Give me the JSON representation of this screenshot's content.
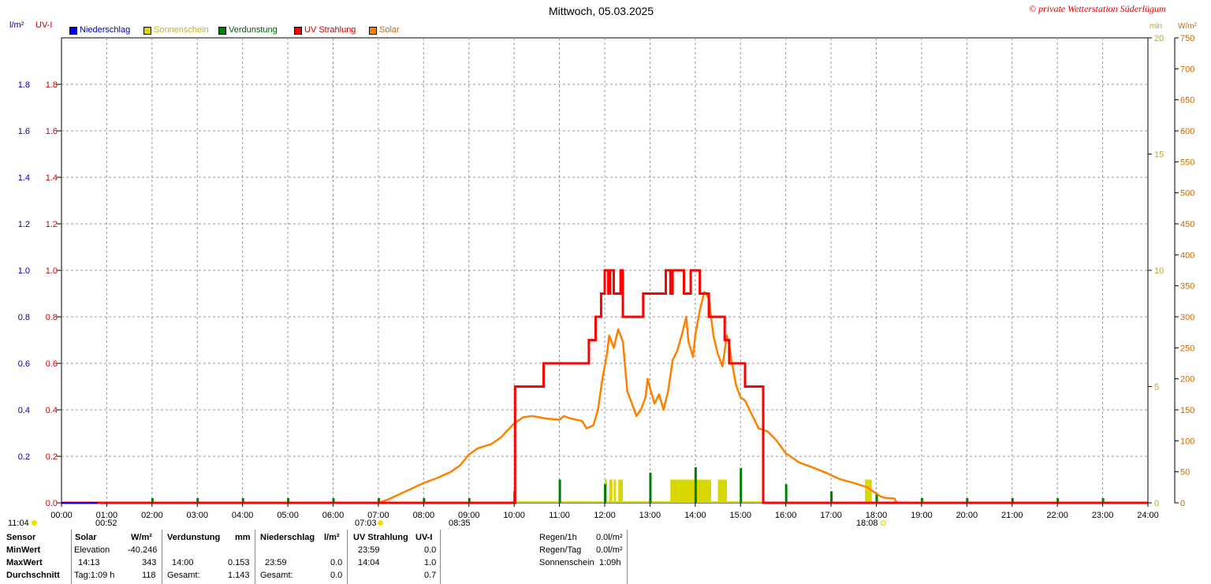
{
  "header": {
    "title": "Mittwoch, 05.03.2025",
    "copyright": "© private Wetterstation Süderlügum",
    "left_unit_1": "l/m²",
    "left_unit_2": "UV-I",
    "right_unit_1": "min",
    "right_unit_2": "W/m²"
  },
  "legend": [
    {
      "label": "Niederschlag",
      "color": "#0000ff"
    },
    {
      "label": "Sonnenschein",
      "color": "#d8d800"
    },
    {
      "label": "Verdunstung",
      "color": "#008000"
    },
    {
      "label": "UV Strahlung",
      "color": "#ff0000"
    },
    {
      "label": "Solar",
      "color": "#ff8000"
    }
  ],
  "sun_markers": {
    "moon_up": "11:04",
    "moon_down": "00:52",
    "sunrise": "07:03",
    "dawn": "08:35",
    "sunset": "18:08"
  },
  "chart_data": {
    "type": "line",
    "title": "Mittwoch, 05.03.2025",
    "x_ticks": [
      "00:00",
      "01:00",
      "02:00",
      "03:00",
      "04:00",
      "05:00",
      "06:00",
      "07:00",
      "08:00",
      "09:00",
      "10:00",
      "11:00",
      "12:00",
      "13:00",
      "14:00",
      "15:00",
      "16:00",
      "17:00",
      "18:00",
      "19:00",
      "20:00",
      "21:00",
      "22:00",
      "23:00",
      "24:00"
    ],
    "xlim": [
      0,
      24
    ],
    "left_axis": {
      "label": "l/m² / UV-I",
      "ylim": [
        0,
        2
      ],
      "ticks": [
        "0.0",
        "0.2",
        "0.4",
        "0.6",
        "0.8",
        "1.0",
        "1.2",
        "1.4",
        "1.6",
        "1.8"
      ]
    },
    "right_axis_min": {
      "label": "min",
      "ylim": [
        0,
        20
      ],
      "ticks": [
        "0",
        "5",
        "10",
        "15",
        "20"
      ]
    },
    "right_axis_wm2": {
      "label": "W/m²",
      "ylim": [
        0,
        750
      ],
      "ticks": [
        "0",
        "50",
        "100",
        "150",
        "200",
        "250",
        "300",
        "350",
        "400",
        "450",
        "500",
        "550",
        "600",
        "650",
        "700",
        "750"
      ]
    },
    "grid": true,
    "series": [
      {
        "name": "UV Strahlung",
        "axis": "left",
        "color": "#ff0000",
        "step": true,
        "points": [
          [
            0,
            0
          ],
          [
            10.02,
            0
          ],
          [
            10.02,
            0.5
          ],
          [
            10.65,
            0.5
          ],
          [
            10.65,
            0.6
          ],
          [
            11.65,
            0.6
          ],
          [
            11.65,
            0.7
          ],
          [
            11.8,
            0.7
          ],
          [
            11.8,
            0.8
          ],
          [
            11.92,
            0.8
          ],
          [
            11.92,
            0.9
          ],
          [
            12.0,
            0.9
          ],
          [
            12.0,
            1.0
          ],
          [
            12.08,
            1.0
          ],
          [
            12.08,
            0.9
          ],
          [
            12.12,
            0.9
          ],
          [
            12.12,
            1.0
          ],
          [
            12.2,
            1.0
          ],
          [
            12.2,
            0.9
          ],
          [
            12.35,
            0.9
          ],
          [
            12.35,
            1.0
          ],
          [
            12.4,
            1.0
          ],
          [
            12.4,
            0.8
          ],
          [
            12.85,
            0.8
          ],
          [
            12.85,
            0.9
          ],
          [
            13.35,
            0.9
          ],
          [
            13.35,
            1.0
          ],
          [
            13.45,
            1.0
          ],
          [
            13.45,
            0.9
          ],
          [
            13.5,
            0.9
          ],
          [
            13.5,
            1.0
          ],
          [
            13.75,
            1.0
          ],
          [
            13.75,
            0.9
          ],
          [
            13.9,
            0.9
          ],
          [
            13.9,
            1.0
          ],
          [
            14.1,
            1.0
          ],
          [
            14.1,
            0.9
          ],
          [
            14.3,
            0.9
          ],
          [
            14.3,
            0.8
          ],
          [
            14.65,
            0.8
          ],
          [
            14.65,
            0.7
          ],
          [
            14.75,
            0.7
          ],
          [
            14.75,
            0.6
          ],
          [
            15.1,
            0.6
          ],
          [
            15.1,
            0.5
          ],
          [
            15.5,
            0.5
          ],
          [
            15.5,
            0
          ],
          [
            24,
            0
          ]
        ]
      },
      {
        "name": "Solar",
        "axis": "right_wm2",
        "color": "#ff8000",
        "points": [
          [
            0,
            0
          ],
          [
            7.0,
            0
          ],
          [
            7.2,
            5
          ],
          [
            7.5,
            15
          ],
          [
            7.8,
            25
          ],
          [
            8.0,
            32
          ],
          [
            8.3,
            40
          ],
          [
            8.6,
            50
          ],
          [
            8.8,
            60
          ],
          [
            9.0,
            78
          ],
          [
            9.2,
            88
          ],
          [
            9.5,
            95
          ],
          [
            9.7,
            105
          ],
          [
            10.0,
            128
          ],
          [
            10.2,
            138
          ],
          [
            10.4,
            140
          ],
          [
            10.7,
            136
          ],
          [
            11.0,
            134
          ],
          [
            11.1,
            140
          ],
          [
            11.25,
            136
          ],
          [
            11.5,
            132
          ],
          [
            11.6,
            120
          ],
          [
            11.75,
            125
          ],
          [
            11.85,
            150
          ],
          [
            11.95,
            200
          ],
          [
            12.05,
            240
          ],
          [
            12.1,
            270
          ],
          [
            12.2,
            250
          ],
          [
            12.3,
            280
          ],
          [
            12.4,
            260
          ],
          [
            12.45,
            220
          ],
          [
            12.5,
            180
          ],
          [
            12.6,
            160
          ],
          [
            12.7,
            140
          ],
          [
            12.8,
            150
          ],
          [
            12.9,
            170
          ],
          [
            12.95,
            200
          ],
          [
            13.0,
            185
          ],
          [
            13.1,
            160
          ],
          [
            13.2,
            175
          ],
          [
            13.3,
            150
          ],
          [
            13.4,
            180
          ],
          [
            13.5,
            230
          ],
          [
            13.6,
            245
          ],
          [
            13.7,
            270
          ],
          [
            13.8,
            300
          ],
          [
            13.85,
            260
          ],
          [
            13.95,
            235
          ],
          [
            14.0,
            270
          ],
          [
            14.1,
            310
          ],
          [
            14.2,
            340
          ],
          [
            14.3,
            330
          ],
          [
            14.35,
            300
          ],
          [
            14.4,
            270
          ],
          [
            14.5,
            240
          ],
          [
            14.6,
            220
          ],
          [
            14.7,
            270
          ],
          [
            14.75,
            255
          ],
          [
            14.8,
            230
          ],
          [
            14.9,
            190
          ],
          [
            15.0,
            170
          ],
          [
            15.1,
            165
          ],
          [
            15.2,
            150
          ],
          [
            15.4,
            120
          ],
          [
            15.6,
            115
          ],
          [
            15.8,
            100
          ],
          [
            16.0,
            80
          ],
          [
            16.3,
            65
          ],
          [
            16.6,
            57
          ],
          [
            16.9,
            48
          ],
          [
            17.2,
            38
          ],
          [
            17.5,
            32
          ],
          [
            17.8,
            25
          ],
          [
            18.0,
            15
          ],
          [
            18.1,
            10
          ],
          [
            18.2,
            8
          ],
          [
            18.4,
            7
          ],
          [
            18.45,
            0
          ],
          [
            24,
            0
          ]
        ]
      },
      {
        "name": "Sonnenschein",
        "axis": "right_min",
        "color": "#d8d800",
        "type": "bar",
        "bars": [
          [
            12.0,
            12.05,
            1.0
          ],
          [
            12.1,
            12.17,
            1.0
          ],
          [
            12.2,
            12.25,
            1.0
          ],
          [
            12.3,
            12.4,
            1.0
          ],
          [
            13.45,
            14.35,
            1.0
          ],
          [
            14.5,
            14.7,
            1.0
          ],
          [
            17.75,
            17.9,
            1.0
          ]
        ]
      },
      {
        "name": "Verdunstung",
        "axis": "left",
        "color": "#008000",
        "type": "bar",
        "bars": [
          [
            2,
            0.02
          ],
          [
            3,
            0.02
          ],
          [
            4,
            0.02
          ],
          [
            5,
            0.02
          ],
          [
            6,
            0.02
          ],
          [
            7,
            0.02
          ],
          [
            8,
            0.02
          ],
          [
            9,
            0.02
          ],
          [
            10,
            0.05
          ],
          [
            11,
            0.1
          ],
          [
            12,
            0.08
          ],
          [
            13,
            0.13
          ],
          [
            14,
            0.153
          ],
          [
            15,
            0.15
          ],
          [
            16,
            0.08
          ],
          [
            17,
            0.05
          ],
          [
            18,
            0.04
          ],
          [
            19,
            0.02
          ],
          [
            20,
            0.02
          ],
          [
            21,
            0.02
          ],
          [
            22,
            0.02
          ],
          [
            23,
            0.02
          ]
        ]
      }
    ]
  },
  "stats": {
    "row_labels": [
      "Sensor",
      "MinWert",
      "MaxWert",
      "Durchschnitt"
    ],
    "solar": {
      "header": "Solar",
      "unit": "W/m²",
      "min_label": "Elevation",
      "min_value": "-40.246",
      "max_time": "14:13",
      "max_value": "343",
      "avg_label": "Tag:1:09 h",
      "avg_value": "118"
    },
    "verdunstung": {
      "header": "Verdunstung",
      "unit": "mm",
      "max_time": "14:00",
      "max_value": "0.153",
      "avg_label": "Gesamt:",
      "avg_value": "1.143"
    },
    "niederschlag": {
      "header": "Niederschlag",
      "unit": "l/m²",
      "max_time": "23:59",
      "max_value": "0.0",
      "avg_label": "Gesamt:",
      "avg_value": "0.0"
    },
    "uv": {
      "header": "UV Strahlung",
      "unit": "UV-I",
      "min_time": "23:59",
      "min_value": "0.0",
      "max_time": "14:04",
      "max_value": "1.0",
      "avg_value": "0.7"
    },
    "extra": [
      {
        "label": "Regen/1h",
        "value": "0.0l/m²"
      },
      {
        "label": "Regen/Tag",
        "value": "0.0l/m²"
      },
      {
        "label": "Sonnenschein",
        "value": "1:09h"
      }
    ]
  }
}
